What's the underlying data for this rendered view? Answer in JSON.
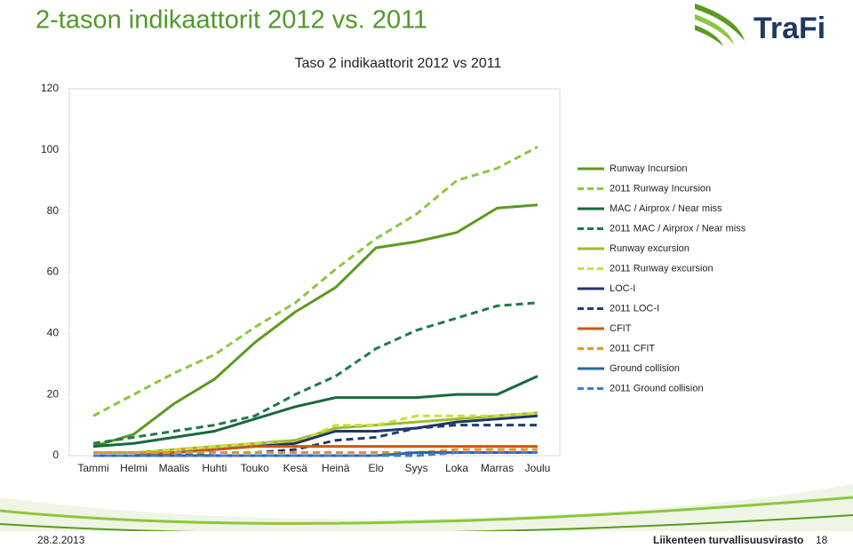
{
  "header": {
    "title": "2-tason indikaattorit 2012 vs. 2011",
    "logo": "TraFi"
  },
  "chart_data": {
    "type": "line",
    "title": "Taso 2 indikaattorit 2012 vs 2011",
    "categories": [
      "Tammi",
      "Helmi",
      "Maalis",
      "Huhti",
      "Touko",
      "Kesä",
      "Heinä",
      "Elo",
      "Syys",
      "Loka",
      "Marras",
      "Joulu"
    ],
    "ylim": [
      0,
      120
    ],
    "yticks": [
      0,
      20,
      40,
      60,
      80,
      100,
      120
    ],
    "grid": false,
    "legend": "right",
    "series": [
      {
        "name": "Runway Incursion",
        "color": "#5b9a1f",
        "dashed": false,
        "values": [
          3,
          7,
          17,
          25,
          37,
          47,
          55,
          68,
          70,
          73,
          81,
          82
        ]
      },
      {
        "name": "2011 Runway Incursion",
        "color": "#8cc63f",
        "dashed": true,
        "values": [
          13,
          20,
          27,
          33,
          42,
          50,
          61,
          71,
          79,
          90,
          94,
          101
        ]
      },
      {
        "name": "MAC / Airprox / Near miss",
        "color": "#17693d",
        "dashed": false,
        "values": [
          3,
          4,
          6,
          8,
          12,
          16,
          19,
          19,
          19,
          20,
          20,
          26
        ]
      },
      {
        "name": "2011 MAC / Airprox / Near miss",
        "color": "#1e7a4a",
        "dashed": true,
        "values": [
          4,
          6,
          8,
          10,
          13,
          20,
          26,
          35,
          41,
          45,
          49,
          50
        ]
      },
      {
        "name": "Runway excursion",
        "color": "#9bbb2f",
        "dashed": false,
        "values": [
          1,
          1,
          2,
          3,
          4,
          5,
          9,
          10,
          11,
          12,
          13,
          14
        ]
      },
      {
        "name": "2011 Runway excursion",
        "color": "#c9e03a",
        "dashed": true,
        "values": [
          1,
          1,
          2,
          3,
          4,
          4,
          10,
          10,
          13,
          13,
          13,
          14
        ]
      },
      {
        "name": "LOC-I",
        "color": "#1f3864",
        "dashed": false,
        "values": [
          0,
          0,
          1,
          2,
          3,
          4,
          8,
          8,
          9,
          11,
          12,
          13
        ]
      },
      {
        "name": "2011 LOC-I",
        "color": "#1f3a6e",
        "dashed": true,
        "values": [
          0,
          0,
          0,
          1,
          1,
          2,
          5,
          6,
          9,
          10,
          10,
          10
        ]
      },
      {
        "name": "CFIT",
        "color": "#c55a11",
        "dashed": false,
        "values": [
          0,
          0,
          1,
          2,
          3,
          3,
          3,
          3,
          3,
          3,
          3,
          3
        ]
      },
      {
        "name": "2011 CFIT",
        "color": "#e3942c",
        "dashed": true,
        "values": [
          1,
          1,
          1,
          1,
          1,
          1,
          1,
          1,
          1,
          2,
          2,
          2
        ]
      },
      {
        "name": "Ground collision",
        "color": "#2e64a8",
        "dashed": false,
        "values": [
          0,
          0,
          0,
          0,
          0,
          0,
          0,
          0,
          1,
          1,
          1,
          1
        ]
      },
      {
        "name": "2011 Ground collision",
        "color": "#3a7fd0",
        "dashed": true,
        "values": [
          0,
          0,
          0,
          0,
          0,
          0,
          0,
          0,
          0,
          1,
          1,
          1
        ]
      }
    ]
  },
  "footer": {
    "date": "28.2.2013",
    "org": "Liikenteen turvallisuusvirasto",
    "page": "18"
  }
}
